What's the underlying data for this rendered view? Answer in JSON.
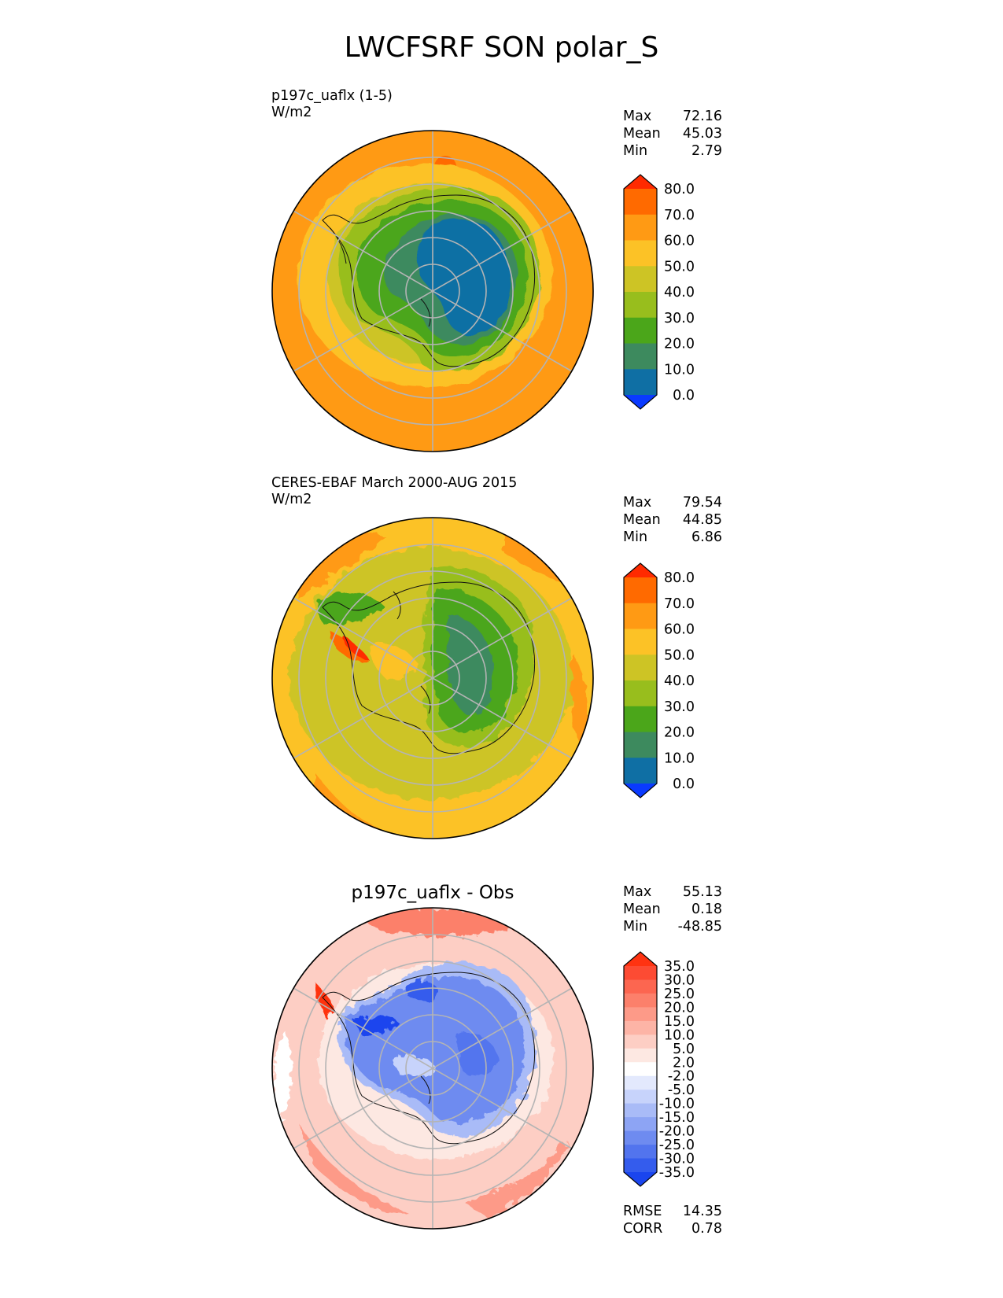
{
  "figure": {
    "title": "LWCFSRF SON polar_S"
  },
  "panels": [
    {
      "id": "test",
      "title_lines": [
        "p197c_uaflx (1-5)",
        "W/m2"
      ],
      "stats": [
        {
          "label": "Max",
          "value": "72.16"
        },
        {
          "label": "Mean",
          "value": "45.03"
        },
        {
          "label": "Min",
          "value": "2.79"
        }
      ],
      "colorbar": {
        "levels": [
          "80.0",
          "70.0",
          "60.0",
          "50.0",
          "40.0",
          "30.0",
          "20.0",
          "10.0",
          "0.0"
        ],
        "colors": [
          "#ff2a00",
          "#ff6a00",
          "#ff9a14",
          "#fcc226",
          "#cdc425",
          "#98be1d",
          "#4ba61a",
          "#3d8a5e",
          "#0f6fa4",
          "#0a3aff"
        ]
      }
    },
    {
      "id": "reference",
      "title_lines": [
        "CERES-EBAF March 2000-AUG 2015",
        "W/m2"
      ],
      "stats": [
        {
          "label": "Max",
          "value": "79.54"
        },
        {
          "label": "Mean",
          "value": "44.85"
        },
        {
          "label": "Min",
          "value": "6.86"
        }
      ],
      "colorbar": {
        "levels": [
          "80.0",
          "70.0",
          "60.0",
          "50.0",
          "40.0",
          "30.0",
          "20.0",
          "10.0",
          "0.0"
        ],
        "colors": [
          "#ff2a00",
          "#ff6a00",
          "#ff9a14",
          "#fcc226",
          "#cdc425",
          "#98be1d",
          "#4ba61a",
          "#3d8a5e",
          "#0f6fa4",
          "#0a3aff"
        ]
      }
    },
    {
      "id": "difference",
      "title": "p197c_uaflx - Obs",
      "stats": [
        {
          "label": "Max",
          "value": "55.13"
        },
        {
          "label": "Mean",
          "value": "0.18"
        },
        {
          "label": "Min",
          "value": "-48.85"
        }
      ],
      "metrics": [
        {
          "label": "RMSE",
          "value": "14.35"
        },
        {
          "label": "CORR",
          "value": "0.78"
        }
      ],
      "colorbar": {
        "levels": [
          "35.0",
          "30.0",
          "25.0",
          "20.0",
          "15.0",
          "10.0",
          "5.0",
          "2.0",
          "-2.0",
          "-5.0",
          "-10.0",
          "-15.0",
          "-20.0",
          "-25.0",
          "-30.0",
          "-35.0"
        ],
        "colors": [
          "#ff3311",
          "#fd4b33",
          "#fc6650",
          "#fc806b",
          "#fd9a88",
          "#fdb4a6",
          "#fdcec4",
          "#fde8e2",
          "#ffffff",
          "#e3e9fd",
          "#c7d3fb",
          "#a9bbf7",
          "#8da4f4",
          "#6e8bf0",
          "#5274ee",
          "#345ced",
          "#1a45ee"
        ]
      }
    }
  ],
  "chart_data": [
    {
      "type": "heatmap",
      "projection": "south polar stereographic",
      "title": "p197c_uaflx (1-5)",
      "units": "W/m2",
      "color_levels": [
        0,
        10,
        20,
        30,
        40,
        50,
        60,
        70,
        80
      ],
      "stats": {
        "max": 72.16,
        "mean": 45.03,
        "min": 2.79
      },
      "regions_approx": [
        {
          "region": "East Antarctic interior",
          "value_range": [
            0,
            10
          ]
        },
        {
          "region": "Antarctic coast",
          "value_range": [
            20,
            40
          ]
        },
        {
          "region": "Southern Ocean near ice",
          "value_range": [
            40,
            50
          ]
        },
        {
          "region": "Outer ocean",
          "value_range": [
            60,
            70
          ]
        }
      ]
    },
    {
      "type": "heatmap",
      "projection": "south polar stereographic",
      "title": "CERES-EBAF March 2000-AUG 2015",
      "units": "W/m2",
      "color_levels": [
        0,
        10,
        20,
        30,
        40,
        50,
        60,
        70,
        80
      ],
      "stats": {
        "max": 79.54,
        "mean": 44.85,
        "min": 6.86
      },
      "regions_approx": [
        {
          "region": "East Antarctic interior",
          "value_range": [
            20,
            30
          ]
        },
        {
          "region": "West Antarctica",
          "value_range": [
            40,
            50
          ]
        },
        {
          "region": "Antarctic Peninsula",
          "value_range": [
            60,
            80
          ]
        },
        {
          "region": "Outer ocean",
          "value_range": [
            50,
            60
          ]
        }
      ]
    },
    {
      "type": "heatmap",
      "projection": "south polar stereographic",
      "title": "p197c_uaflx - Obs",
      "color_levels": [
        -35,
        -30,
        -25,
        -20,
        -15,
        -10,
        -5,
        -2,
        2,
        5,
        10,
        15,
        20,
        25,
        30,
        35
      ],
      "stats": {
        "max": 55.13,
        "mean": 0.18,
        "min": -48.85,
        "rmse": 14.35,
        "corr": 0.78
      },
      "regions_approx": [
        {
          "region": "Antarctic continent",
          "value_range": [
            -35,
            -15
          ]
        },
        {
          "region": "Antarctic Peninsula",
          "value_range": [
            30,
            35
          ]
        },
        {
          "region": "Southern Ocean",
          "value_range": [
            5,
            20
          ]
        }
      ]
    }
  ]
}
